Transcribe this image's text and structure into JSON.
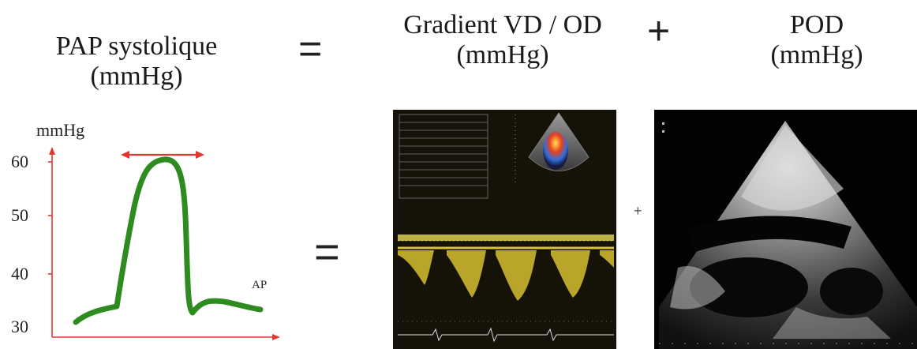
{
  "equation": {
    "lhs_line1": "PAP systolique",
    "lhs_line2": "(mmHg)",
    "equals": "=",
    "term1_line1": "Gradient VD / OD",
    "term1_line2": "(mmHg)",
    "plus": "+",
    "term2_line1": "POD",
    "term2_line2": "(mmHg)"
  },
  "pressure_plot": {
    "y_unit": "mmHg",
    "y_ticks": [
      "60",
      "50",
      "40",
      "30"
    ],
    "curve_label": "AP",
    "colors": {
      "axis": "#e8342d",
      "curve": "#2e8b1f",
      "arrow": "#e8342d"
    }
  },
  "lower_row": {
    "equals": "=",
    "plus": "+"
  },
  "images": {
    "doppler": "continuous-wave Doppler tracing (tricuspid regurgitation)",
    "echo": "subcostal echocardiography view"
  }
}
